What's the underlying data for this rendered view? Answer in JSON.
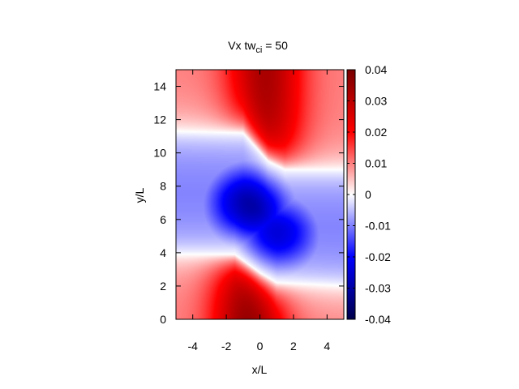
{
  "chart_data": {
    "type": "heatmap",
    "title": {
      "prefix": "Vx tw",
      "subscript": "ci",
      "suffix": " =  50"
    },
    "xlabel": "x/L",
    "ylabel": "y/L",
    "xlim": [
      -5,
      5
    ],
    "ylim": [
      0,
      15
    ],
    "xticks": [
      -4,
      -2,
      0,
      2,
      4
    ],
    "yticks": [
      0,
      2,
      4,
      6,
      8,
      10,
      12,
      14
    ],
    "colorbar": {
      "range": [
        -0.04,
        0.04
      ],
      "ticks": [
        "0.04",
        "0.03",
        "0.02",
        "0.01",
        "0",
        "-0.01",
        "-0.02",
        "-0.03",
        "-0.04"
      ],
      "colormap": [
        "#00004a",
        "#0000ff",
        "#ffffff",
        "#ff0000",
        "#780000"
      ]
    },
    "field": {
      "features": [
        {
          "x": -0.6,
          "y": 1.0,
          "value": 0.037
        },
        {
          "x": 0.3,
          "y": 14.6,
          "value": 0.033
        },
        {
          "x": -0.6,
          "y": 6.8,
          "value": -0.031
        },
        {
          "x": 1.0,
          "y": 5.0,
          "value": -0.026
        }
      ],
      "zero_contours": [
        {
          "x": [
            -5,
            -1.5,
            0.0,
            1.0,
            5
          ],
          "y": [
            3.9,
            3.9,
            2.8,
            2.2,
            2.0
          ]
        },
        {
          "x": [
            -5,
            -1.0,
            0.5,
            1.5,
            5
          ],
          "y": [
            11.3,
            11.2,
            9.5,
            9.0,
            9.0
          ]
        }
      ]
    }
  }
}
